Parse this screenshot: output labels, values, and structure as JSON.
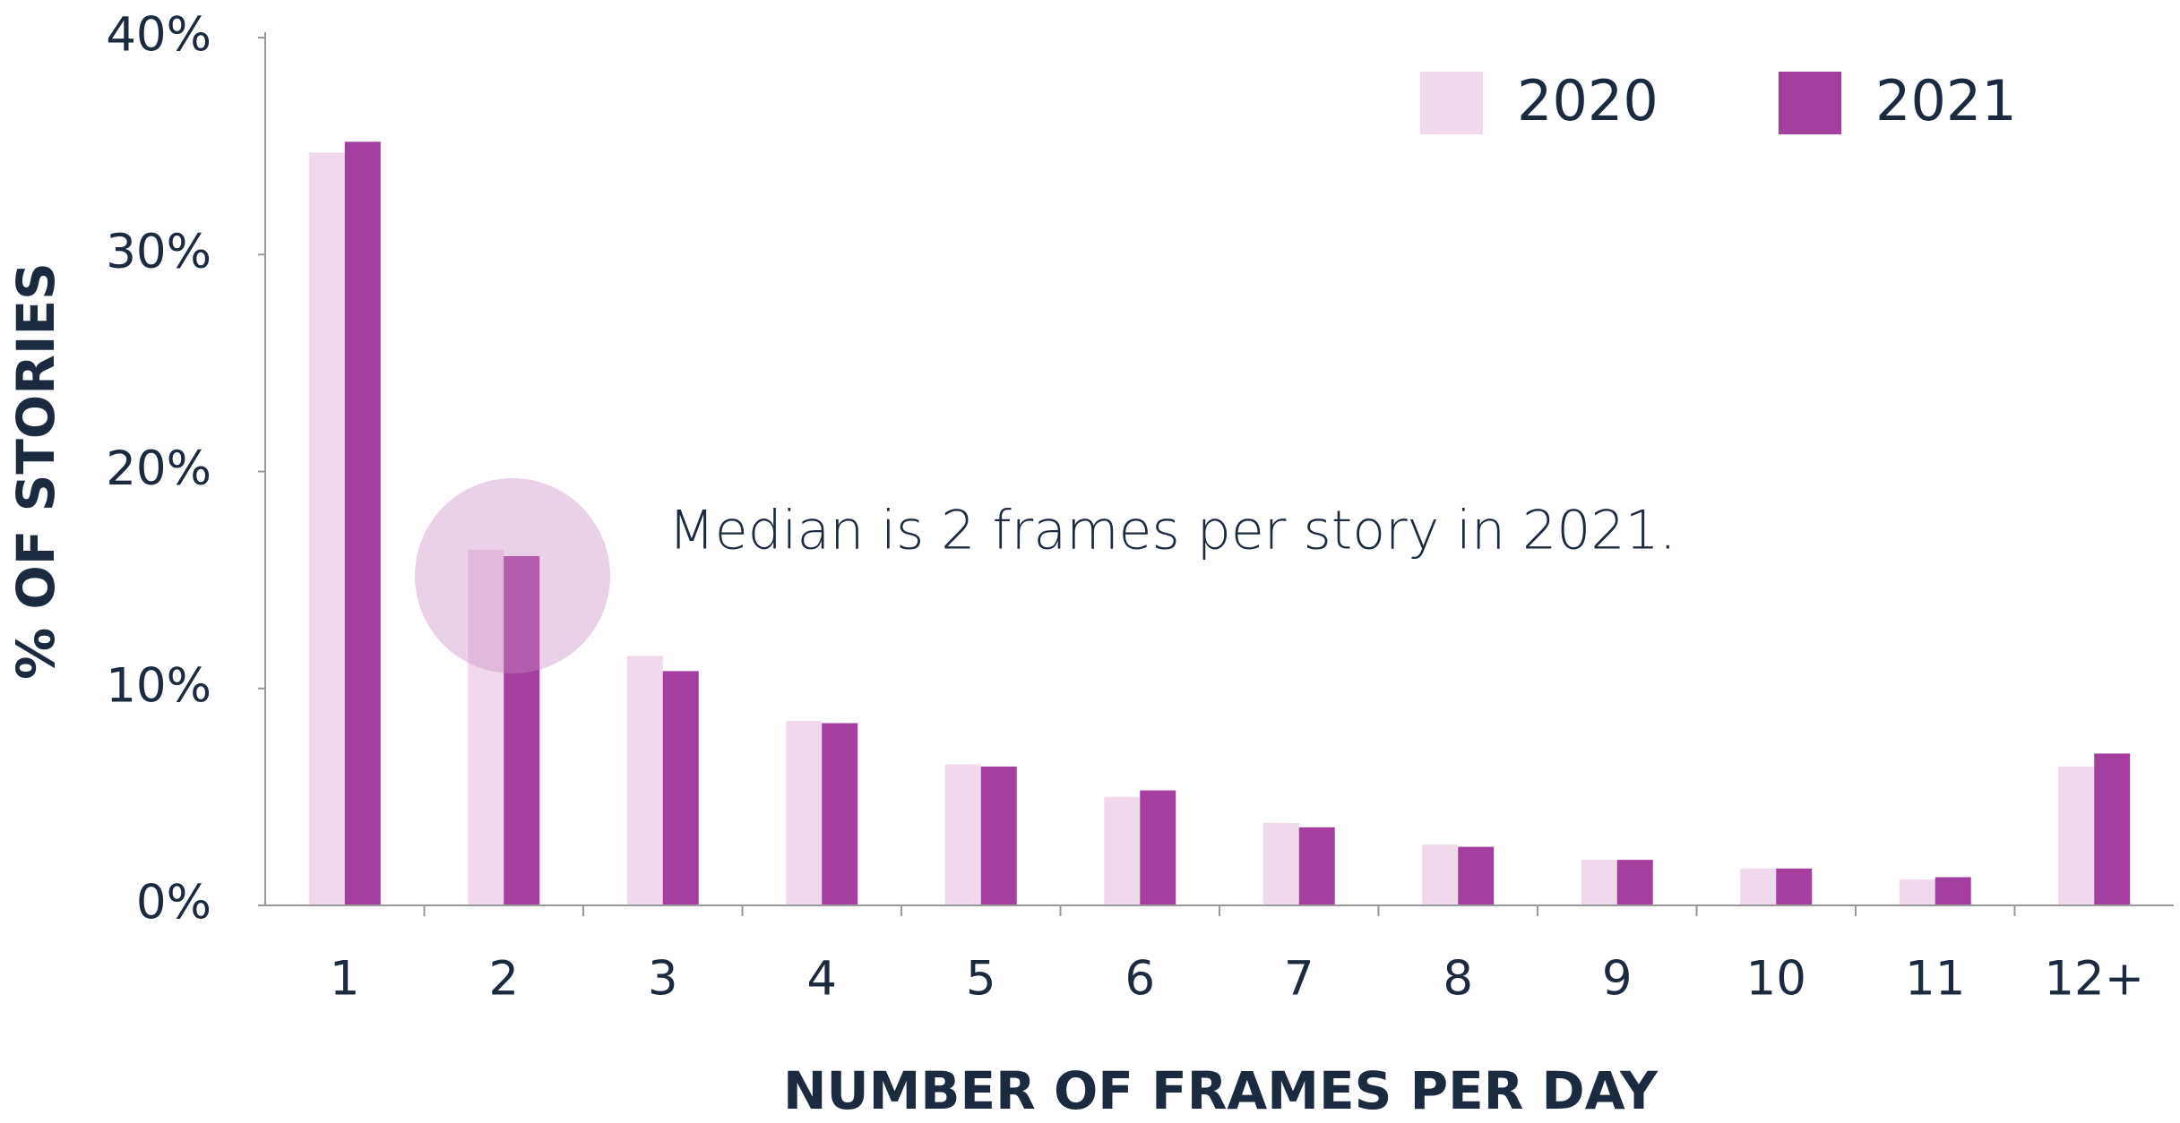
{
  "chart_data": {
    "type": "bar",
    "title": null,
    "xlabel": "NUMBER OF FRAMES PER DAY",
    "ylabel": "% OF STORIES",
    "annotation": "Median is 2 frames per story in 2021.",
    "categories": [
      "1",
      "2",
      "3",
      "4",
      "5",
      "6",
      "7",
      "8",
      "9",
      "10",
      "11",
      "12+"
    ],
    "series": [
      {
        "name": "2020",
        "color": "#f0d9ec",
        "values": [
          34.7,
          16.4,
          11.5,
          8.5,
          6.5,
          5.0,
          3.8,
          2.8,
          2.1,
          1.7,
          1.2,
          6.4
        ]
      },
      {
        "name": "2021",
        "color": "#a53f9f",
        "values": [
          35.2,
          16.1,
          10.8,
          8.4,
          6.4,
          5.3,
          3.6,
          2.7,
          2.1,
          1.7,
          1.3,
          7.0
        ]
      }
    ],
    "ylim": [
      0,
      40
    ],
    "yticks": [
      {
        "value": 0,
        "label": "0%"
      },
      {
        "value": 10,
        "label": "10%"
      },
      {
        "value": 20,
        "label": "20%"
      },
      {
        "value": 30,
        "label": "30%"
      },
      {
        "value": 40,
        "label": "40%"
      }
    ],
    "grid": false,
    "legend": "upper right"
  }
}
